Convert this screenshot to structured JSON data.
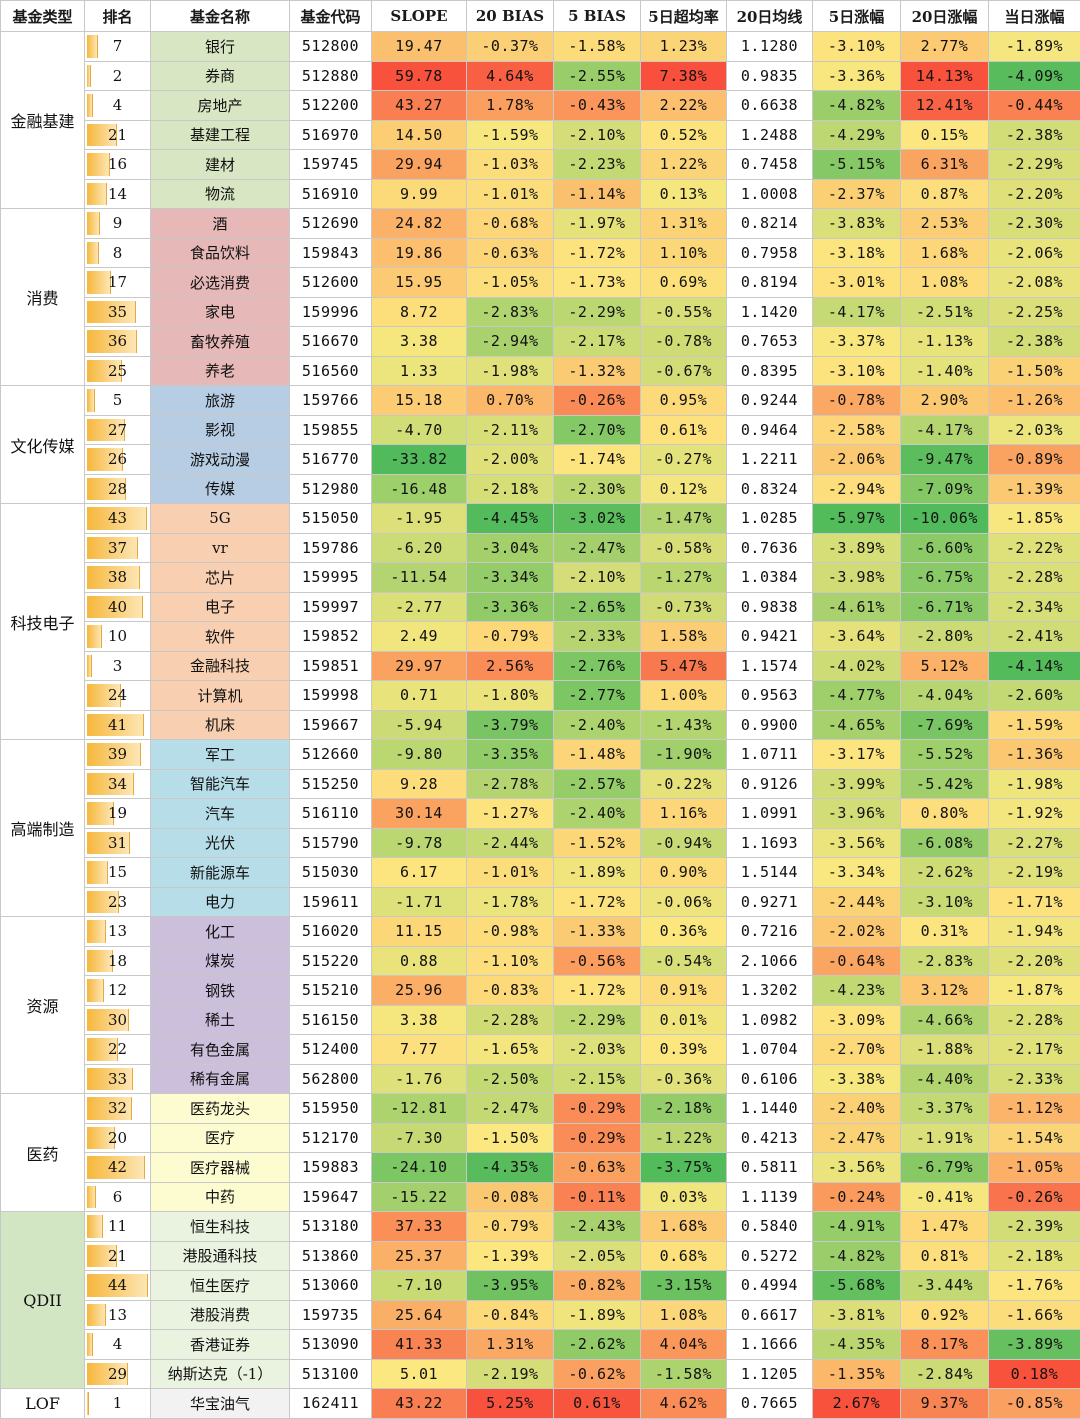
{
  "headers": [
    "基金类型",
    "排名",
    "基金名称",
    "基金代码",
    "SLOPE",
    "20 BIAS",
    "5 BIAS",
    "5日超均率",
    "20日均线",
    "5日涨幅",
    "20日涨幅",
    "当日涨幅"
  ],
  "colors": {
    "name_bg": {
      "金融基建": "#d9e6c4",
      "消费": "#e6b8b8",
      "文化传媒": "#b7cde3",
      "科技电子": "#f8cfb0",
      "高端制造": "#b7dde8",
      "资源": "#cbbfdc",
      "医药": "#fdfbd0",
      "QDII": "#eaf2e0",
      "LOF": "#f2f2f2"
    },
    "cat_bg": {
      "QDII": "#d3e6c4"
    }
  },
  "groups": [
    {
      "name": "金融基建",
      "rows": [
        [
          "7",
          "银行",
          "512800",
          "19.47",
          "-0.37%",
          "-1.58%",
          "1.23%",
          "1.1280",
          "-3.10%",
          "2.77%",
          "-1.89%"
        ],
        [
          "2",
          "券商",
          "512880",
          "59.78",
          "4.64%",
          "-2.55%",
          "7.38%",
          "0.9835",
          "-3.36%",
          "14.13%",
          "-4.09%"
        ],
        [
          "4",
          "房地产",
          "512200",
          "43.27",
          "1.78%",
          "-0.43%",
          "2.22%",
          "0.6638",
          "-4.82%",
          "12.41%",
          "-0.44%"
        ],
        [
          "21",
          "基建工程",
          "516970",
          "14.50",
          "-1.59%",
          "-2.10%",
          "0.52%",
          "1.2488",
          "-4.29%",
          "0.15%",
          "-2.38%"
        ],
        [
          "16",
          "建材",
          "159745",
          "29.94",
          "-1.03%",
          "-2.23%",
          "1.22%",
          "0.7458",
          "-5.15%",
          "6.31%",
          "-2.29%"
        ],
        [
          "14",
          "物流",
          "516910",
          "9.99",
          "-1.01%",
          "-1.14%",
          "0.13%",
          "1.0008",
          "-2.37%",
          "0.87%",
          "-2.20%"
        ]
      ]
    },
    {
      "name": "消费",
      "rows": [
        [
          "9",
          "酒",
          "512690",
          "24.82",
          "-0.68%",
          "-1.97%",
          "1.31%",
          "0.8214",
          "-3.83%",
          "2.53%",
          "-2.30%"
        ],
        [
          "8",
          "食品饮料",
          "159843",
          "19.86",
          "-0.63%",
          "-1.72%",
          "1.10%",
          "0.7958",
          "-3.18%",
          "1.68%",
          "-2.06%"
        ],
        [
          "17",
          "必选消费",
          "512600",
          "15.95",
          "-1.05%",
          "-1.73%",
          "0.69%",
          "0.8194",
          "-3.01%",
          "1.08%",
          "-2.08%"
        ],
        [
          "35",
          "家电",
          "159996",
          "8.72",
          "-2.83%",
          "-2.29%",
          "-0.55%",
          "1.1420",
          "-4.17%",
          "-2.51%",
          "-2.25%"
        ],
        [
          "36",
          "畜牧养殖",
          "516670",
          "3.38",
          "-2.94%",
          "-2.17%",
          "-0.78%",
          "0.7653",
          "-3.37%",
          "-1.13%",
          "-2.38%"
        ],
        [
          "25",
          "养老",
          "516560",
          "1.33",
          "-1.98%",
          "-1.32%",
          "-0.67%",
          "0.8395",
          "-3.10%",
          "-1.40%",
          "-1.50%"
        ]
      ]
    },
    {
      "name": "文化传媒",
      "rows": [
        [
          "5",
          "旅游",
          "159766",
          "15.18",
          "0.70%",
          "-0.26%",
          "0.95%",
          "0.9244",
          "-0.78%",
          "2.90%",
          "-1.26%"
        ],
        [
          "27",
          "影视",
          "159855",
          "-4.70",
          "-2.11%",
          "-2.70%",
          "0.61%",
          "0.9464",
          "-2.58%",
          "-4.17%",
          "-2.03%"
        ],
        [
          "26",
          "游戏动漫",
          "516770",
          "-33.82",
          "-2.00%",
          "-1.74%",
          "-0.27%",
          "1.2211",
          "-2.06%",
          "-9.47%",
          "-0.89%"
        ],
        [
          "28",
          "传媒",
          "512980",
          "-16.48",
          "-2.18%",
          "-2.30%",
          "0.12%",
          "0.8324",
          "-2.94%",
          "-7.09%",
          "-1.39%"
        ]
      ]
    },
    {
      "name": "科技电子",
      "rows": [
        [
          "43",
          "5G",
          "515050",
          "-1.95",
          "-4.45%",
          "-3.02%",
          "-1.47%",
          "1.0285",
          "-5.97%",
          "-10.06%",
          "-1.85%"
        ],
        [
          "37",
          "vr",
          "159786",
          "-6.20",
          "-3.04%",
          "-2.47%",
          "-0.58%",
          "0.7636",
          "-3.89%",
          "-6.60%",
          "-2.22%"
        ],
        [
          "38",
          "芯片",
          "159995",
          "-11.54",
          "-3.34%",
          "-2.10%",
          "-1.27%",
          "1.0384",
          "-3.98%",
          "-6.75%",
          "-2.28%"
        ],
        [
          "40",
          "电子",
          "159997",
          "-2.77",
          "-3.36%",
          "-2.65%",
          "-0.73%",
          "0.9838",
          "-4.61%",
          "-6.71%",
          "-2.34%"
        ],
        [
          "10",
          "软件",
          "159852",
          "2.49",
          "-0.79%",
          "-2.33%",
          "1.58%",
          "0.9421",
          "-3.64%",
          "-2.80%",
          "-2.41%"
        ],
        [
          "3",
          "金融科技",
          "159851",
          "29.97",
          "2.56%",
          "-2.76%",
          "5.47%",
          "1.1574",
          "-4.02%",
          "5.12%",
          "-4.14%"
        ],
        [
          "24",
          "计算机",
          "159998",
          "0.71",
          "-1.80%",
          "-2.77%",
          "1.00%",
          "0.9563",
          "-4.77%",
          "-4.04%",
          "-2.60%"
        ],
        [
          "41",
          "机床",
          "159667",
          "-5.94",
          "-3.79%",
          "-2.40%",
          "-1.43%",
          "0.9900",
          "-4.65%",
          "-7.69%",
          "-1.59%"
        ]
      ]
    },
    {
      "name": "高端制造",
      "rows": [
        [
          "39",
          "军工",
          "512660",
          "-9.80",
          "-3.35%",
          "-1.48%",
          "-1.90%",
          "1.0711",
          "-3.17%",
          "-5.52%",
          "-1.36%"
        ],
        [
          "34",
          "智能汽车",
          "515250",
          "9.28",
          "-2.78%",
          "-2.57%",
          "-0.22%",
          "0.9126",
          "-3.99%",
          "-5.42%",
          "-1.98%"
        ],
        [
          "19",
          "汽车",
          "516110",
          "30.14",
          "-1.27%",
          "-2.40%",
          "1.16%",
          "1.0991",
          "-3.96%",
          "0.80%",
          "-1.92%"
        ],
        [
          "31",
          "光伏",
          "515790",
          "-9.78",
          "-2.44%",
          "-1.52%",
          "-0.94%",
          "1.1693",
          "-3.56%",
          "-6.08%",
          "-2.27%"
        ],
        [
          "15",
          "新能源车",
          "515030",
          "6.17",
          "-1.01%",
          "-1.89%",
          "0.90%",
          "1.5144",
          "-3.34%",
          "-2.62%",
          "-2.19%"
        ],
        [
          "23",
          "电力",
          "159611",
          "-1.71",
          "-1.78%",
          "-1.72%",
          "-0.06%",
          "0.9271",
          "-2.44%",
          "-3.10%",
          "-1.71%"
        ]
      ]
    },
    {
      "name": "资源",
      "rows": [
        [
          "13",
          "化工",
          "516020",
          "11.15",
          "-0.98%",
          "-1.33%",
          "0.36%",
          "0.7216",
          "-2.02%",
          "0.31%",
          "-1.94%"
        ],
        [
          "18",
          "煤炭",
          "515220",
          "0.88",
          "-1.10%",
          "-0.56%",
          "-0.54%",
          "2.1066",
          "-0.64%",
          "-2.83%",
          "-2.20%"
        ],
        [
          "12",
          "钢铁",
          "515210",
          "25.96",
          "-0.83%",
          "-1.72%",
          "0.91%",
          "1.3202",
          "-4.23%",
          "3.12%",
          "-1.87%"
        ],
        [
          "30",
          "稀土",
          "516150",
          "3.38",
          "-2.28%",
          "-2.29%",
          "0.01%",
          "1.0982",
          "-3.09%",
          "-4.66%",
          "-2.28%"
        ],
        [
          "22",
          "有色金属",
          "512400",
          "7.77",
          "-1.65%",
          "-2.03%",
          "0.39%",
          "1.0704",
          "-2.70%",
          "-1.88%",
          "-2.17%"
        ],
        [
          "33",
          "稀有金属",
          "562800",
          "-1.76",
          "-2.50%",
          "-2.15%",
          "-0.36%",
          "0.6106",
          "-3.38%",
          "-4.40%",
          "-2.33%"
        ]
      ]
    },
    {
      "name": "医药",
      "rows": [
        [
          "32",
          "医药龙头",
          "515950",
          "-12.81",
          "-2.47%",
          "-0.29%",
          "-2.18%",
          "1.1440",
          "-2.40%",
          "-3.37%",
          "-1.12%"
        ],
        [
          "20",
          "医疗",
          "512170",
          "-7.30",
          "-1.50%",
          "-0.29%",
          "-1.22%",
          "0.4213",
          "-2.47%",
          "-1.91%",
          "-1.54%"
        ],
        [
          "42",
          "医疗器械",
          "159883",
          "-24.10",
          "-4.35%",
          "-0.63%",
          "-3.75%",
          "0.5811",
          "-3.56%",
          "-6.79%",
          "-1.05%"
        ],
        [
          "6",
          "中药",
          "159647",
          "-15.22",
          "-0.08%",
          "-0.11%",
          "0.03%",
          "1.1139",
          "-0.24%",
          "-0.41%",
          "-0.26%"
        ]
      ]
    },
    {
      "name": "QDII",
      "rows": [
        [
          "11",
          "恒生科技",
          "513180",
          "37.33",
          "-0.79%",
          "-2.43%",
          "1.68%",
          "0.5840",
          "-4.91%",
          "1.47%",
          "-2.39%"
        ],
        [
          "21",
          "港股通科技",
          "513860",
          "25.37",
          "-1.39%",
          "-2.05%",
          "0.68%",
          "0.5272",
          "-4.82%",
          "0.81%",
          "-2.18%"
        ],
        [
          "44",
          "恒生医疗",
          "513060",
          "-7.10",
          "-3.95%",
          "-0.82%",
          "-3.15%",
          "0.4994",
          "-5.68%",
          "-3.44%",
          "-1.76%"
        ],
        [
          "13",
          "港股消费",
          "159735",
          "25.64",
          "-0.84%",
          "-1.89%",
          "1.08%",
          "0.6617",
          "-3.81%",
          "0.92%",
          "-1.66%"
        ],
        [
          "4",
          "香港证券",
          "513090",
          "41.33",
          "1.31%",
          "-2.62%",
          "4.04%",
          "1.1666",
          "-4.35%",
          "8.17%",
          "-3.89%"
        ],
        [
          "29",
          "纳斯达克（-1）",
          "513100",
          "5.01",
          "-2.19%",
          "-0.62%",
          "-1.58%",
          "1.1205",
          "-1.35%",
          "-2.84%",
          "0.18%"
        ]
      ]
    },
    {
      "name": "LOF",
      "rows": [
        [
          "1",
          "华宝油气",
          "162411",
          "43.22",
          "5.25%",
          "0.61%",
          "4.62%",
          "0.7665",
          "2.67%",
          "9.37%",
          "-0.85%"
        ]
      ]
    }
  ]
}
